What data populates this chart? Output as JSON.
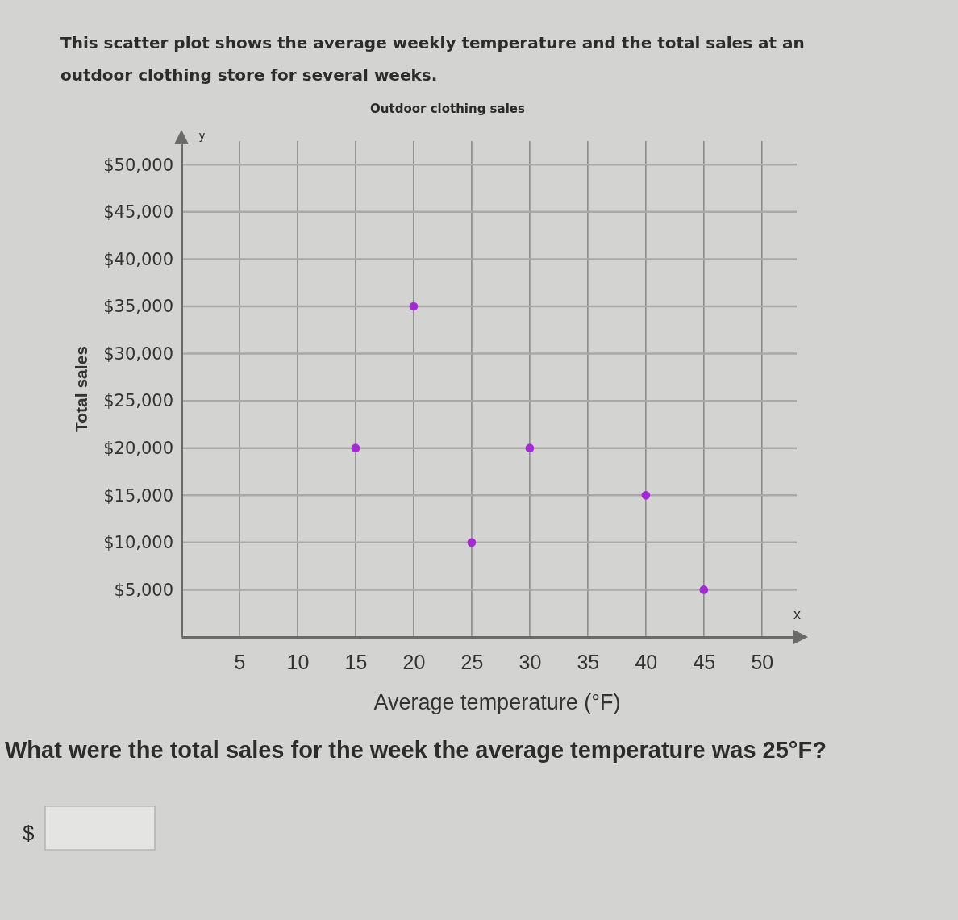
{
  "chart_data": {
    "type": "scatter",
    "title": "Outdoor clothing sales",
    "xlabel": "Average temperature (°F)",
    "ylabel": "Total sales",
    "annotations": [
      "This scatter plot shows the average weekly temperature and the total sales at an outdoor clothing store for several weeks.",
      "y",
      "x",
      "What were the total sales for the week the average temperature was 25°F?",
      "$"
    ],
    "x": [
      15,
      20,
      25,
      30,
      40,
      45
    ],
    "series": [
      {
        "color": "#a52ad6",
        "values": [
          20000,
          35000,
          10000,
          20000,
          15000,
          5000
        ]
      }
    ],
    "xlim": [
      0,
      53
    ],
    "ylim": [
      0,
      52500
    ],
    "xticks": [
      5,
      10,
      15,
      20,
      25,
      30,
      35,
      40,
      45,
      50
    ],
    "yticks": [
      {
        "value": 5000,
        "label": "$5,000"
      },
      {
        "value": 10000,
        "label": "$10,000"
      },
      {
        "value": 15000,
        "label": "$15,000"
      },
      {
        "value": 20000,
        "label": "$20,000"
      },
      {
        "value": 25000,
        "label": "$25,000"
      },
      {
        "value": 30000,
        "label": "$30,000"
      },
      {
        "value": 35000,
        "label": "$35,000"
      },
      {
        "value": 40000,
        "label": "$40,000"
      },
      {
        "value": 45000,
        "label": "$45,000"
      },
      {
        "value": 50000,
        "label": "$50,000"
      }
    ],
    "grid": true,
    "marker": "circle"
  }
}
